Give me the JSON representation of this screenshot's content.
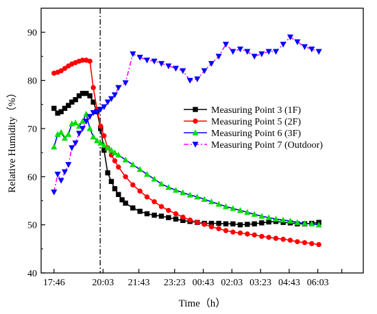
{
  "chart_data": {
    "type": "line",
    "xlabel": "Time（h）",
    "ylabel": "Relative Humidity（%）",
    "x_tick_labels": [
      "17:46",
      "20:03",
      "21:43",
      "23:23",
      "00:43",
      "02:03",
      "03:23",
      "04:43",
      "06:03"
    ],
    "x_tick_hours": [
      0,
      2.283,
      3.95,
      5.617,
      6.95,
      8.283,
      9.617,
      10.95,
      12.283
    ],
    "xlim_hours": [
      -0.6,
      14.4
    ],
    "ylim": [
      40,
      95
    ],
    "y_ticks": [
      40,
      50,
      60,
      70,
      80,
      90
    ],
    "marker_line": {
      "x_hours": 2.15,
      "style": "dash-dot"
    },
    "legend_placement": "center-right",
    "series": [
      {
        "name": "Measuring Point 3 (1F)",
        "color": "#000000",
        "marker": "square",
        "x": [
          0.0,
          0.17,
          0.33,
          0.5,
          0.67,
          0.83,
          1.0,
          1.17,
          1.33,
          1.5,
          1.67,
          1.83,
          2.0,
          2.17,
          2.33,
          2.5,
          2.67,
          2.83,
          3.0,
          3.17,
          3.33,
          3.67,
          4.0,
          4.33,
          4.67,
          5.0,
          5.33,
          5.67,
          6.0,
          6.33,
          6.67,
          7.0,
          7.33,
          7.67,
          8.0,
          8.33,
          8.67,
          9.0,
          9.33,
          9.67,
          10.0,
          10.33,
          10.67,
          11.0,
          11.33,
          11.67,
          12.0,
          12.33
        ],
        "y": [
          74.2,
          73.2,
          73.5,
          74.2,
          74.8,
          75.5,
          76.0,
          76.8,
          77.3,
          77.3,
          76.8,
          75.5,
          73.5,
          70.0,
          65.5,
          60.8,
          59.0,
          57.5,
          56.3,
          55.2,
          54.5,
          53.5,
          52.8,
          52.3,
          52.0,
          51.8,
          51.5,
          51.2,
          50.9,
          50.7,
          50.5,
          50.3,
          50.3,
          50.3,
          50.2,
          50.2,
          50.0,
          50.1,
          50.2,
          50.4,
          50.6,
          50.7,
          50.5,
          50.4,
          50.2,
          50.2,
          50.3,
          50.5
        ]
      },
      {
        "name": "Measuring Point 5 (2F)",
        "color": "#ff0000",
        "marker": "circle",
        "x": [
          0.0,
          0.17,
          0.33,
          0.5,
          0.67,
          0.83,
          1.0,
          1.17,
          1.33,
          1.5,
          1.67,
          1.83,
          2.0,
          2.17,
          2.33,
          2.5,
          2.67,
          2.83,
          3.0,
          3.33,
          3.67,
          4.0,
          4.33,
          4.67,
          5.0,
          5.33,
          5.67,
          6.0,
          6.33,
          6.67,
          7.0,
          7.33,
          7.67,
          8.0,
          8.33,
          8.67,
          9.0,
          9.33,
          9.67,
          10.0,
          10.33,
          10.67,
          11.0,
          11.33,
          11.67,
          12.0,
          12.33
        ],
        "y": [
          81.5,
          81.7,
          82.0,
          82.5,
          83.0,
          83.4,
          83.7,
          84.0,
          84.2,
          84.2,
          84.0,
          78.5,
          74.0,
          70.5,
          68.5,
          66.0,
          64.5,
          63.3,
          62.0,
          60.0,
          58.3,
          57.0,
          55.8,
          54.8,
          53.8,
          53.0,
          52.3,
          51.6,
          51.0,
          50.5,
          50.1,
          49.6,
          49.2,
          48.8,
          48.5,
          48.3,
          48.1,
          47.9,
          47.6,
          47.4,
          47.2,
          47.0,
          46.8,
          46.5,
          46.3,
          46.1,
          45.9
        ]
      },
      {
        "name": "Measuring Point 6 (3F)",
        "color": "#0000ff",
        "marker": "triangle-up",
        "marker_fill": "#00dd00",
        "x": [
          0.0,
          0.17,
          0.33,
          0.5,
          0.67,
          0.83,
          1.0,
          1.17,
          1.33,
          1.5,
          1.67,
          1.83,
          2.0,
          2.17,
          2.33,
          2.5,
          2.67,
          2.83,
          3.0,
          3.33,
          3.67,
          4.0,
          4.33,
          4.67,
          5.0,
          5.33,
          5.67,
          6.0,
          6.33,
          6.67,
          7.0,
          7.33,
          7.67,
          8.0,
          8.33,
          8.67,
          9.0,
          9.33,
          9.67,
          10.0,
          10.33,
          10.67,
          11.0,
          11.33,
          11.67,
          12.0,
          12.33
        ],
        "y": [
          66.2,
          68.8,
          69.2,
          68.0,
          68.8,
          71.0,
          71.2,
          70.5,
          71.5,
          73.0,
          70.0,
          68.3,
          67.5,
          67.0,
          66.5,
          66.0,
          65.5,
          65.0,
          64.5,
          63.5,
          62.5,
          61.5,
          60.5,
          59.5,
          58.5,
          57.8,
          57.2,
          56.7,
          56.2,
          55.8,
          55.3,
          54.8,
          54.3,
          53.8,
          53.4,
          53.0,
          52.6,
          52.2,
          51.8,
          51.5,
          51.2,
          51.0,
          50.8,
          50.5,
          50.3,
          50.2,
          50.0
        ]
      },
      {
        "name": "Measuring Point 7 (Outdoor)",
        "color": "#ff00ff",
        "marker": "triangle-down",
        "marker_fill": "#0000ff",
        "x": [
          0.0,
          0.17,
          0.33,
          0.5,
          0.67,
          0.83,
          1.0,
          1.17,
          1.33,
          1.5,
          1.67,
          1.83,
          2.0,
          2.17,
          2.33,
          2.5,
          2.67,
          2.83,
          3.0,
          3.33,
          3.67,
          4.0,
          4.33,
          4.67,
          5.0,
          5.33,
          5.67,
          6.0,
          6.33,
          6.67,
          7.0,
          7.33,
          7.67,
          8.0,
          8.33,
          8.67,
          9.0,
          9.33,
          9.67,
          10.0,
          10.33,
          10.67,
          11.0,
          11.33,
          11.67,
          12.0,
          12.33
        ],
        "y": [
          56.8,
          60.5,
          59.2,
          61.0,
          62.5,
          66.0,
          67.0,
          69.0,
          70.0,
          71.5,
          72.5,
          73.3,
          73.5,
          74.0,
          74.5,
          75.5,
          76.2,
          77.0,
          78.5,
          79.5,
          85.5,
          84.8,
          84.2,
          84.0,
          83.5,
          83.0,
          82.5,
          82.0,
          80.0,
          80.3,
          82.0,
          83.5,
          85.0,
          87.5,
          86.0,
          86.5,
          86.0,
          85.0,
          85.5,
          86.0,
          86.0,
          87.5,
          89.0,
          88.0,
          87.0,
          86.5,
          86.0
        ]
      }
    ]
  }
}
